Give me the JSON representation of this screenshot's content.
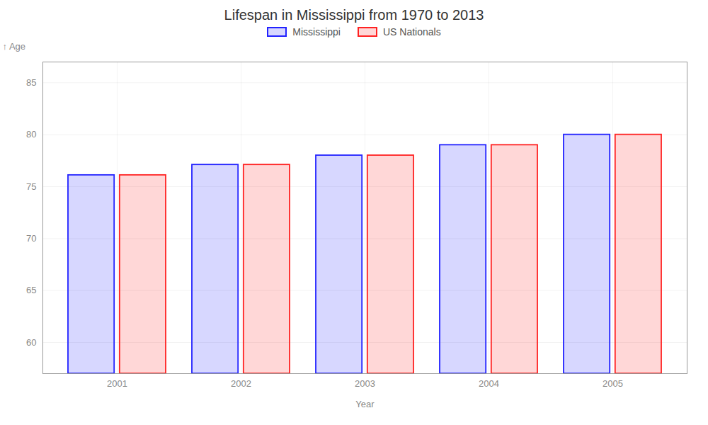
{
  "chart_data": {
    "type": "bar",
    "title": "Lifespan in Mississippi from 1970 to 2013",
    "xlabel": "Year",
    "ylabel": "Age",
    "categories": [
      "2001",
      "2002",
      "2003",
      "2004",
      "2005"
    ],
    "series": [
      {
        "name": "Mississippi",
        "color": "#2222ff",
        "values": [
          76.1,
          77.1,
          78.0,
          79.0,
          80.0
        ]
      },
      {
        "name": "US Nationals",
        "color": "#ff2222",
        "values": [
          76.1,
          77.1,
          78.0,
          79.0,
          80.0
        ]
      }
    ],
    "ylim": [
      57,
      87
    ],
    "yticks": [
      60,
      65,
      70,
      75,
      80,
      85
    ],
    "grid": true,
    "legend": "top"
  }
}
